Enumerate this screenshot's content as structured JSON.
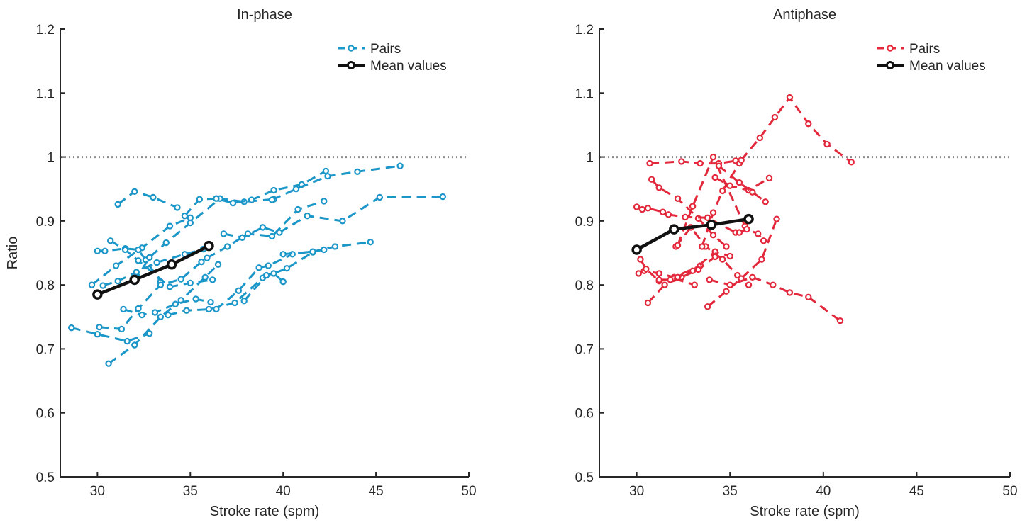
{
  "colors": {
    "pairs_inphase": "#1b96c8",
    "pairs_antiphase": "#e3283c",
    "mean": "#111111",
    "reference": "#8a8a8a",
    "axis": "#262626"
  },
  "chart_data": [
    {
      "type": "line",
      "title": "In-phase",
      "xlabel": "Stroke rate (spm)",
      "ylabel": "Ratio",
      "xlim": [
        28,
        50
      ],
      "ylim": [
        0.5,
        1.2
      ],
      "xticks": [
        "30",
        "35",
        "40",
        "45",
        "50"
      ],
      "yticks": [
        "0.5",
        "0.6",
        "0.7",
        "0.8",
        "0.9",
        "1",
        "1.1",
        "1.2"
      ],
      "reference_line": 1.0,
      "legend": {
        "position": "top-right",
        "entries": [
          "Pairs",
          "Mean values"
        ]
      },
      "series": [
        {
          "name": "Pairs",
          "style": "dashed",
          "lines": [
            {
              "x": [
                28.6,
                30.0,
                31.6,
                32.8
              ],
              "y": [
                0.733,
                0.723,
                0.712,
                0.724
              ]
            },
            {
              "x": [
                29.7,
                31.0,
                32.4,
                33.9,
                35.0
              ],
              "y": [
                0.8,
                0.83,
                0.858,
                0.892,
                0.905
              ]
            },
            {
              "x": [
                30.0,
                30.4,
                31.5,
                32.2,
                32.6,
                33.4
              ],
              "y": [
                0.853,
                0.853,
                0.857,
                0.855,
                0.839,
                0.805
              ]
            },
            {
              "x": [
                30.1,
                31.3,
                32.2,
                33.4,
                34.5,
                35.6
              ],
              "y": [
                0.734,
                0.731,
                0.763,
                0.8,
                0.809,
                0.836
              ]
            },
            {
              "x": [
                30.3,
                31.1,
                32.1,
                33.2,
                34.7,
                35.7
              ],
              "y": [
                0.799,
                0.806,
                0.82,
                0.835,
                0.848,
                0.856
              ]
            },
            {
              "x": [
                30.7,
                31.5,
                32.2,
                33.9,
                35.0,
                36.2
              ],
              "y": [
                0.869,
                0.855,
                0.838,
                0.797,
                0.803,
                0.808
              ]
            },
            {
              "x": [
                30.6,
                32.0,
                33.4,
                34.5,
                35.8,
                36.5
              ],
              "y": [
                0.677,
                0.706,
                0.75,
                0.776,
                0.812,
                0.832
              ]
            },
            {
              "x": [
                31.1,
                32.0,
                33.0,
                34.3
              ],
              "y": [
                0.926,
                0.946,
                0.937,
                0.921
              ]
            },
            {
              "x": [
                31.4,
                32.4,
                33.1,
                34.2,
                35.3,
                36.1
              ],
              "y": [
                0.762,
                0.753,
                0.757,
                0.77,
                0.778,
                0.773
              ]
            },
            {
              "x": [
                32.0,
                32.8,
                33.7,
                35.0,
                36.6,
                37.9,
                39.5
              ],
              "y": [
                0.805,
                0.843,
                0.866,
                0.897,
                0.935,
                0.93,
                0.934
              ]
            },
            {
              "x": [
                33.8,
                34.8,
                36.0,
                37.4,
                38.9,
                40.2,
                41.6
              ],
              "y": [
                0.753,
                0.76,
                0.762,
                0.772,
                0.811,
                0.826,
                0.851
              ]
            },
            {
              "x": [
                34.7,
                35.5,
                36.4,
                37.3,
                38.3,
                39.5,
                41.0,
                42.3
              ],
              "y": [
                0.908,
                0.934,
                0.935,
                0.928,
                0.933,
                0.948,
                0.957,
                0.978
              ]
            },
            {
              "x": [
                35.9,
                37.0,
                38.1,
                39.4,
                40.8,
                42.2
              ],
              "y": [
                0.842,
                0.86,
                0.88,
                0.876,
                0.918,
                0.931
              ]
            },
            {
              "x": [
                36.4,
                37.6,
                38.7,
                39.2,
                40.5,
                42.2
              ],
              "y": [
                0.762,
                0.791,
                0.827,
                0.83,
                0.848,
                0.855
              ]
            },
            {
              "x": [
                36.8,
                37.8,
                38.9,
                39.8,
                41.3,
                43.2,
                45.2,
                48.6
              ],
              "y": [
                0.88,
                0.874,
                0.89,
                0.882,
                0.908,
                0.9,
                0.937,
                0.938
              ]
            },
            {
              "x": [
                37.9,
                39.1,
                39.5,
                40.0
              ],
              "y": [
                0.775,
                0.815,
                0.818,
                0.805
              ]
            },
            {
              "x": [
                39.4,
                40.7,
                42.4,
                44.0,
                46.3
              ],
              "y": [
                0.933,
                0.95,
                0.97,
                0.977,
                0.986
              ]
            },
            {
              "x": [
                40.0,
                41.6,
                42.8,
                44.7
              ],
              "y": [
                0.848,
                0.852,
                0.86,
                0.867
              ]
            }
          ]
        },
        {
          "name": "Mean values",
          "style": "solid",
          "x": [
            30,
            32,
            34,
            36
          ],
          "y": [
            0.785,
            0.808,
            0.832,
            0.861
          ]
        }
      ]
    },
    {
      "type": "line",
      "title": "Antiphase",
      "xlabel": "Stroke rate (spm)",
      "ylabel": "",
      "xlim": [
        28,
        50
      ],
      "ylim": [
        0.5,
        1.2
      ],
      "xticks": [
        "30",
        "35",
        "40",
        "45",
        "50"
      ],
      "yticks": [
        "0.5",
        "0.6",
        "0.7",
        "0.8",
        "0.9",
        "1",
        "1.1",
        "1.2"
      ],
      "reference_line": 1.0,
      "legend": {
        "position": "top-right",
        "entries": [
          "Pairs",
          "Mean values"
        ]
      },
      "series": [
        {
          "name": "Pairs",
          "style": "dashed",
          "lines": [
            {
              "x": [
                30.0,
                30.3,
                30.6,
                31.4
              ],
              "y": [
                0.922,
                0.918,
                0.92,
                0.914
              ]
            },
            {
              "x": [
                30.1,
                30.4,
                31.2,
                32.0,
                33.4
              ],
              "y": [
                0.818,
                0.822,
                0.818,
                0.812,
                0.83
              ]
            },
            {
              "x": [
                30.2,
                30.5,
                31.2,
                32.0,
                33.1
              ],
              "y": [
                0.84,
                0.825,
                0.806,
                0.81,
                0.8
              ]
            },
            {
              "x": [
                30.6,
                31.5,
                32.4,
                33.3,
                34.2
              ],
              "y": [
                0.772,
                0.8,
                0.812,
                0.824,
                0.844
              ]
            },
            {
              "x": [
                30.7,
                32.4,
                33.4,
                34.4,
                35.3,
                35.6
              ],
              "y": [
                0.99,
                0.993,
                0.99,
                0.99,
                0.994,
                0.995
              ]
            },
            {
              "x": [
                30.8,
                31.2,
                32.2,
                33.3,
                34.1,
                34.8
              ],
              "y": [
                0.965,
                0.952,
                0.935,
                0.904,
                0.878,
                0.86
              ]
            },
            {
              "x": [
                31.2,
                31.8,
                32.2,
                33.0,
                34.2,
                35.0
              ],
              "y": [
                0.808,
                0.808,
                0.812,
                0.822,
                0.852,
                0.845
              ]
            },
            {
              "x": [
                31.7,
                32.6,
                33.8,
                35.3
              ],
              "y": [
                0.91,
                0.906,
                0.905,
                0.882
              ]
            },
            {
              "x": [
                32.1,
                32.9,
                33.7,
                34.6,
                35.4,
                36.0
              ],
              "y": [
                0.86,
                0.89,
                0.86,
                0.84,
                0.815,
                0.8
              ]
            },
            {
              "x": [
                32.2,
                33.0,
                34.1,
                35.8
              ],
              "y": [
                0.862,
                0.923,
                1.0,
                0.892
              ]
            },
            {
              "x": [
                33.5,
                34.1,
                34.6,
                35.5
              ],
              "y": [
                0.86,
                0.913,
                0.947,
                0.99
              ]
            },
            {
              "x": [
                33.8,
                34.8,
                35.6,
                36.7,
                37.5
              ],
              "y": [
                0.766,
                0.79,
                0.81,
                0.84,
                0.903
              ]
            },
            {
              "x": [
                33.9,
                35.0,
                36.2,
                37.3,
                38.2,
                39.2,
                40.9
              ],
              "y": [
                0.808,
                0.8,
                0.812,
                0.8,
                0.788,
                0.781,
                0.744
              ]
            },
            {
              "x": [
                34.2,
                35.0,
                36.0,
                37.1
              ],
              "y": [
                0.968,
                0.955,
                0.948,
                0.967
              ]
            },
            {
              "x": [
                34.4,
                35.5,
                36.2,
                36.9
              ],
              "y": [
                0.986,
                0.96,
                0.945,
                0.93
              ]
            },
            {
              "x": [
                35.5,
                35.9,
                36.5,
                36.8
              ],
              "y": [
                0.882,
                0.887,
                0.88,
                0.869
              ]
            },
            {
              "x": [
                35.6,
                36.6,
                37.4,
                38.2,
                39.2,
                40.2,
                41.5
              ],
              "y": [
                0.995,
                1.03,
                1.062,
                1.093,
                1.052,
                1.02,
                0.992
              ]
            }
          ]
        },
        {
          "name": "Mean values",
          "style": "solid",
          "x": [
            30,
            32,
            34,
            36
          ],
          "y": [
            0.855,
            0.887,
            0.894,
            0.903
          ]
        }
      ]
    }
  ]
}
